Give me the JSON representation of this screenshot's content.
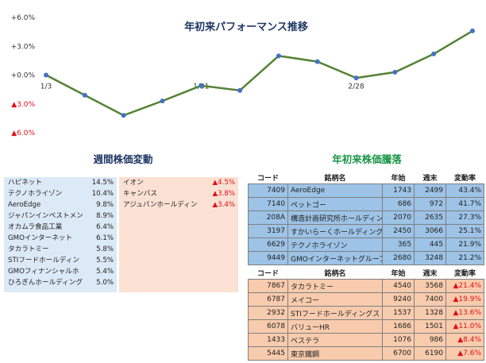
{
  "chart_data": {
    "type": "line",
    "title": "年初来パフォーマンス推移",
    "color": "#548235",
    "marker_color": "#4472c4",
    "ylim": [
      -6.0,
      6.0
    ],
    "yticks": [
      {
        "value": 6.0,
        "label": "+6.0%"
      },
      {
        "value": 3.0,
        "label": "+3.0%"
      },
      {
        "value": 0.0,
        "label": "+0.0%"
      },
      {
        "value": -3.0,
        "label": "▲3.0%"
      },
      {
        "value": -6.0,
        "label": "▲6.0%"
      }
    ],
    "x_tick_labels": [
      {
        "index": 0,
        "label": "1/3"
      },
      {
        "index": 4,
        "label": "1/31"
      },
      {
        "index": 8,
        "label": "2/28"
      }
    ],
    "values": [
      0.0,
      -2.1,
      -4.2,
      -2.7,
      -1.1,
      -1.6,
      2.0,
      1.4,
      -0.3,
      0.3,
      2.2,
      4.6
    ]
  },
  "weekly": {
    "title": "週間株価変動",
    "up": [
      {
        "name": "ハピネット",
        "value": "14.5%"
      },
      {
        "name": "テクノホライゾン",
        "value": "10.4%"
      },
      {
        "name": "AeroEdge",
        "value": "9.8%"
      },
      {
        "name": "ジャパンインベストメン",
        "value": "8.9%"
      },
      {
        "name": "オカムラ食品工業",
        "value": "6.4%"
      },
      {
        "name": "GMOインターネット",
        "value": "6.1%"
      },
      {
        "name": "タカラトミー",
        "value": "5.8%"
      },
      {
        "name": "STIフードホールディン",
        "value": "5.5%"
      },
      {
        "name": "GMOフィナンシャルホ",
        "value": "5.4%"
      },
      {
        "name": "ひろぎんホールディング",
        "value": "5.0%"
      }
    ],
    "down": [
      {
        "name": "イオン",
        "value": "▲4.5%"
      },
      {
        "name": "キャンバス",
        "value": "▲3.8%"
      },
      {
        "name": "アジュバンホールディン",
        "value": "▲3.4%"
      }
    ]
  },
  "ytd": {
    "title": "年初来株価騰落",
    "headers": {
      "code": "コード",
      "name": "銘柄名",
      "start": "年始",
      "end": "週末",
      "rate": "変動率"
    },
    "gainers": [
      {
        "code": "7409",
        "name": "AeroEdge",
        "start": "1743",
        "end": "2499",
        "rate": "43.4%"
      },
      {
        "code": "7140",
        "name": "ペットゴー",
        "start": "686",
        "end": "972",
        "rate": "41.7%"
      },
      {
        "code": "208A",
        "name": "構造計画研究所ホールディングス",
        "start": "2070",
        "end": "2635",
        "rate": "27.3%"
      },
      {
        "code": "3197",
        "name": "すかいらーくホールディングス",
        "start": "2450",
        "end": "3066",
        "rate": "25.1%"
      },
      {
        "code": "6629",
        "name": "テクノホライゾン",
        "start": "365",
        "end": "445",
        "rate": "21.9%"
      },
      {
        "code": "9449",
        "name": "GMOインターネットグループ",
        "start": "2680",
        "end": "3248",
        "rate": "21.2%"
      }
    ],
    "losers": [
      {
        "code": "7867",
        "name": "タカラトミー",
        "start": "4540",
        "end": "3568",
        "rate": "▲21.4%"
      },
      {
        "code": "6787",
        "name": "メイコー",
        "start": "9240",
        "end": "7400",
        "rate": "▲19.9%"
      },
      {
        "code": "2932",
        "name": "STIフードホールディングス",
        "start": "1537",
        "end": "1328",
        "rate": "▲13.6%"
      },
      {
        "code": "6078",
        "name": "バリューHR",
        "start": "1686",
        "end": "1501",
        "rate": "▲11.0%"
      },
      {
        "code": "1433",
        "name": "ベステラ",
        "start": "1076",
        "end": "986",
        "rate": "▲8.4%"
      },
      {
        "code": "5445",
        "name": "東京鐵鋼",
        "start": "6700",
        "end": "6190",
        "rate": "▲7.6%"
      }
    ]
  }
}
